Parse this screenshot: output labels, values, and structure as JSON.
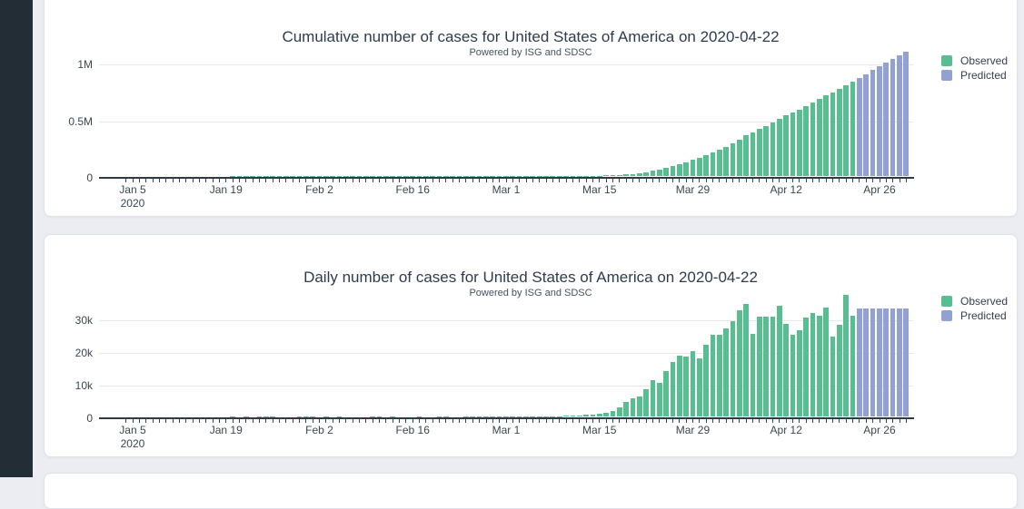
{
  "page": {
    "background_color": "#ebedf2",
    "sidebar_color": "#232d36",
    "card_color": "#ffffff",
    "axis_color": "#2e3a44",
    "grid_color": "#e8ebee"
  },
  "chart_data": [
    {
      "type": "bar",
      "title": "Cumulative number of cases for United States of America on 2020-04-22",
      "subtitle": "Powered by ISG and SDSC",
      "x_start_date": "2020-01-04",
      "x_frequency": "daily",
      "x_tick_labels": [
        "Jan 5",
        "Jan 19",
        "Feb 2",
        "Feb 16",
        "Mar 1",
        "Mar 15",
        "Mar 29",
        "Apr 12",
        "Apr 26"
      ],
      "x_tick_day_indices": [
        1,
        15,
        29,
        43,
        57,
        71,
        85,
        99,
        113
      ],
      "x_first_tick_sublabel": "2020",
      "y_tick_labels": [
        "0",
        "0.5M",
        "1M"
      ],
      "y_tick_values": [
        0,
        500000,
        1000000
      ],
      "ylim": [
        0,
        1160000
      ],
      "grid": true,
      "legend_position": "top-right-outside",
      "legend": [
        {
          "label": "Observed",
          "color": "#58bd90"
        },
        {
          "label": "Predicted",
          "color": "#93a1d2"
        }
      ],
      "series": [
        {
          "name": "Observed",
          "color": "#58bd90",
          "values": [
            0,
            0,
            0,
            0,
            0,
            0,
            0,
            0,
            0,
            0,
            0,
            0,
            0,
            0,
            0,
            0,
            1,
            1,
            2,
            2,
            3,
            4,
            7,
            7,
            7,
            7,
            8,
            9,
            10,
            10,
            13,
            13,
            14,
            14,
            14,
            14,
            14,
            15,
            16,
            16,
            17,
            17,
            17,
            17,
            18,
            18,
            18,
            19,
            38,
            38,
            38,
            56,
            60,
            65,
            66,
            69,
            77,
            83,
            106,
            125,
            158,
            235,
            284,
            402,
            516,
            580,
            871,
            1149,
            1563,
            2075,
            2690,
            3522,
            4759,
            6467,
            9287,
            13711,
            19305,
            25369,
            33605,
            44841,
            55263,
            69226,
            86023,
            104714,
            123074,
            143053,
            160874,
            182720,
            207697,
            232824,
            259867,
            289110,
            321740,
            356160,
            381570,
            412242,
            442760,
            473462,
            507243,
            535634,
            560536,
            586857,
            617019,
            648612,
            679524,
            712733,
            737156,
            765247,
            802459,
            833333
          ]
        },
        {
          "name": "Predicted",
          "color": "#93a1d2",
          "values": [
            866333,
            899333,
            932333,
            965333,
            998333,
            1031333,
            1064333,
            1097333
          ]
        }
      ]
    },
    {
      "type": "bar",
      "title": "Daily number of cases for United States of America on 2020-04-22",
      "subtitle": "Powered by ISG and SDSC",
      "x_start_date": "2020-01-04",
      "x_frequency": "daily",
      "x_tick_labels": [
        "Jan 5",
        "Jan 19",
        "Feb 2",
        "Feb 16",
        "Mar 1",
        "Mar 15",
        "Mar 29",
        "Apr 12",
        "Apr 26"
      ],
      "x_tick_day_indices": [
        1,
        15,
        29,
        43,
        57,
        71,
        85,
        99,
        113
      ],
      "x_first_tick_sublabel": "2020",
      "y_tick_labels": [
        "0",
        "10k",
        "20k",
        "30k"
      ],
      "y_tick_values": [
        0,
        10000,
        20000,
        30000
      ],
      "ylim": [
        0,
        38900
      ],
      "grid": true,
      "legend_position": "top-right-outside",
      "legend": [
        {
          "label": "Observed",
          "color": "#58bd90"
        },
        {
          "label": "Predicted",
          "color": "#93a1d2"
        }
      ],
      "series": [
        {
          "name": "Observed",
          "color": "#58bd90",
          "values": [
            0,
            0,
            0,
            0,
            0,
            0,
            0,
            0,
            0,
            0,
            0,
            0,
            0,
            0,
            0,
            0,
            1,
            0,
            1,
            0,
            1,
            1,
            3,
            0,
            0,
            0,
            1,
            1,
            1,
            0,
            3,
            0,
            1,
            0,
            0,
            0,
            0,
            1,
            1,
            0,
            1,
            0,
            0,
            0,
            1,
            0,
            0,
            1,
            19,
            0,
            0,
            18,
            4,
            5,
            1,
            3,
            8,
            6,
            23,
            19,
            33,
            77,
            49,
            118,
            114,
            64,
            291,
            278,
            414,
            512,
            615,
            832,
            1237,
            1708,
            2820,
            4424,
            5594,
            6064,
            8236,
            11236,
            10422,
            13963,
            16797,
            18691,
            18360,
            19979,
            17821,
            21846,
            24977,
            25127,
            27043,
            29243,
            32630,
            34420,
            25410,
            30672,
            30518,
            30702,
            33781,
            28391,
            24902,
            26321,
            30162,
            31593,
            30912,
            33209,
            24423,
            28091,
            37212,
            30874
          ]
        },
        {
          "name": "Predicted",
          "color": "#93a1d2",
          "values": [
            33000,
            33000,
            33000,
            33000,
            33000,
            33000,
            33000,
            33000
          ]
        }
      ]
    }
  ]
}
